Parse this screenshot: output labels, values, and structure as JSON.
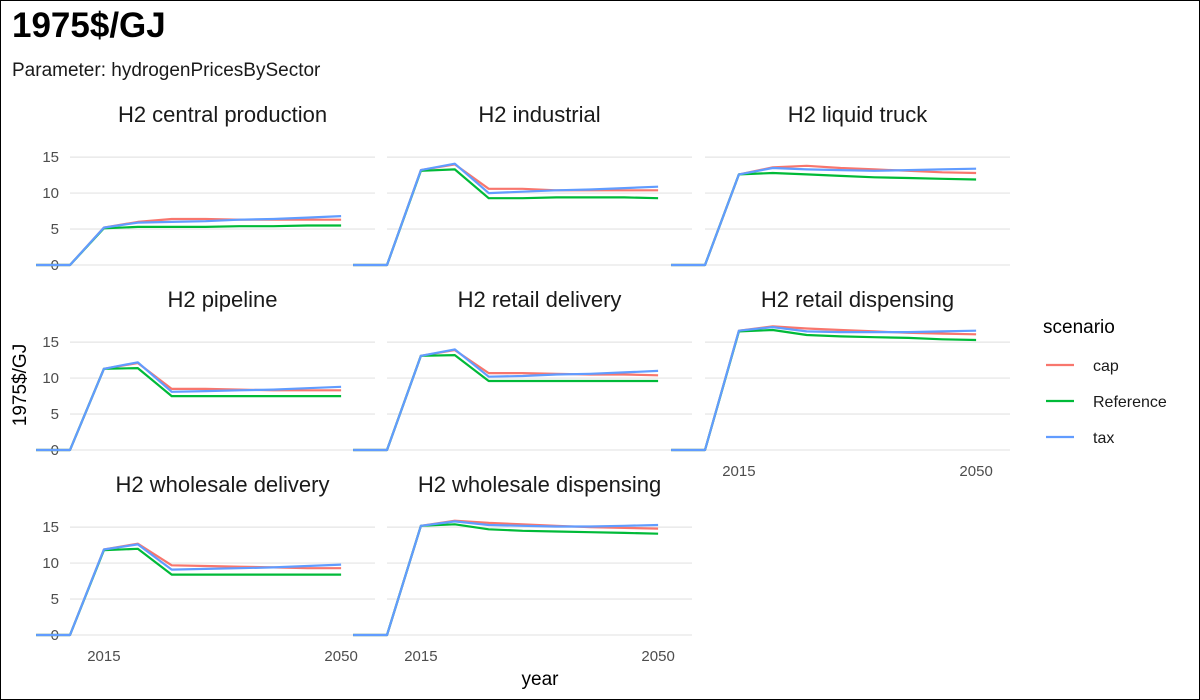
{
  "header": {
    "title": "1975$/GJ",
    "subtitle": "Parameter: hydrogenPricesBySector"
  },
  "chart_data": {
    "type": "line",
    "facet": "small-multiples",
    "xlabel": "year",
    "ylabel": "1975$/GJ",
    "x_ticks": [
      2015,
      2050
    ],
    "y_ticks": [
      0,
      5,
      10,
      15
    ],
    "ylim": [
      0,
      16
    ],
    "xlim": [
      2010,
      2055
    ],
    "grid": true,
    "legend": {
      "title": "scenario",
      "placement": "right"
    },
    "series": [
      {
        "name": "cap",
        "color": "#F8766D"
      },
      {
        "name": "Reference",
        "color": "#00BA38"
      },
      {
        "name": "tax",
        "color": "#619CFF"
      }
    ],
    "x": [
      2005,
      2010,
      2015,
      2020,
      2025,
      2030,
      2035,
      2040,
      2045,
      2050
    ],
    "panels": [
      {
        "label": "H2 central production",
        "values": {
          "cap": [
            0,
            0,
            5.2,
            6.0,
            6.4,
            6.4,
            6.3,
            6.3,
            6.3,
            6.3
          ],
          "Reference": [
            0,
            0,
            5.1,
            5.3,
            5.3,
            5.3,
            5.4,
            5.4,
            5.5,
            5.5
          ],
          "tax": [
            0,
            0,
            5.2,
            5.9,
            6.0,
            6.1,
            6.3,
            6.4,
            6.6,
            6.8
          ]
        }
      },
      {
        "label": "H2 industrial",
        "values": {
          "cap": [
            0,
            0,
            13.2,
            14.0,
            10.6,
            10.6,
            10.4,
            10.4,
            10.4,
            10.4
          ],
          "Reference": [
            0,
            0,
            13.1,
            13.3,
            9.3,
            9.3,
            9.4,
            9.4,
            9.4,
            9.3
          ],
          "tax": [
            0,
            0,
            13.2,
            14.1,
            10.0,
            10.2,
            10.4,
            10.5,
            10.7,
            10.9
          ]
        }
      },
      {
        "label": "H2 liquid truck",
        "values": {
          "cap": [
            0,
            0,
            12.6,
            13.6,
            13.8,
            13.5,
            13.3,
            13.1,
            12.9,
            12.8
          ],
          "Reference": [
            0,
            0,
            12.6,
            12.8,
            12.6,
            12.4,
            12.2,
            12.1,
            12.0,
            11.9
          ],
          "tax": [
            0,
            0,
            12.6,
            13.5,
            13.3,
            13.2,
            13.1,
            13.2,
            13.3,
            13.4
          ]
        }
      },
      {
        "label": "H2 pipeline",
        "values": {
          "cap": [
            0,
            0,
            11.3,
            12.1,
            8.5,
            8.5,
            8.4,
            8.3,
            8.3,
            8.3
          ],
          "Reference": [
            0,
            0,
            11.3,
            11.4,
            7.5,
            7.5,
            7.5,
            7.5,
            7.5,
            7.5
          ],
          "tax": [
            0,
            0,
            11.3,
            12.2,
            8.1,
            8.2,
            8.3,
            8.4,
            8.6,
            8.8
          ]
        }
      },
      {
        "label": "H2 retail delivery",
        "values": {
          "cap": [
            0,
            0,
            13.1,
            13.9,
            10.7,
            10.7,
            10.6,
            10.5,
            10.5,
            10.4
          ],
          "Reference": [
            0,
            0,
            13.1,
            13.2,
            9.6,
            9.6,
            9.6,
            9.6,
            9.6,
            9.6
          ],
          "tax": [
            0,
            0,
            13.1,
            14.0,
            10.2,
            10.3,
            10.5,
            10.6,
            10.8,
            11.0
          ]
        }
      },
      {
        "label": "H2 retail dispensing",
        "values": {
          "cap": [
            0,
            0,
            16.6,
            17.2,
            16.9,
            16.7,
            16.5,
            16.3,
            16.2,
            16.1
          ],
          "Reference": [
            0,
            0,
            16.5,
            16.7,
            16.0,
            15.8,
            15.7,
            15.6,
            15.4,
            15.3
          ],
          "tax": [
            0,
            0,
            16.6,
            17.1,
            16.5,
            16.4,
            16.4,
            16.4,
            16.5,
            16.6
          ]
        }
      },
      {
        "label": "H2 wholesale delivery",
        "values": {
          "cap": [
            0,
            0,
            11.9,
            12.7,
            9.7,
            9.6,
            9.5,
            9.4,
            9.3,
            9.3
          ],
          "Reference": [
            0,
            0,
            11.8,
            12.0,
            8.4,
            8.4,
            8.4,
            8.4,
            8.4,
            8.4
          ],
          "tax": [
            0,
            0,
            11.9,
            12.6,
            9.1,
            9.2,
            9.3,
            9.4,
            9.6,
            9.8
          ]
        }
      },
      {
        "label": "H2 wholesale dispensing",
        "values": {
          "cap": [
            0,
            0,
            15.2,
            15.9,
            15.6,
            15.4,
            15.2,
            15.0,
            14.9,
            14.8
          ],
          "Reference": [
            0,
            0,
            15.2,
            15.4,
            14.7,
            14.5,
            14.4,
            14.3,
            14.2,
            14.1
          ],
          "tax": [
            0,
            0,
            15.2,
            15.8,
            15.3,
            15.2,
            15.1,
            15.1,
            15.2,
            15.3
          ]
        }
      }
    ]
  }
}
